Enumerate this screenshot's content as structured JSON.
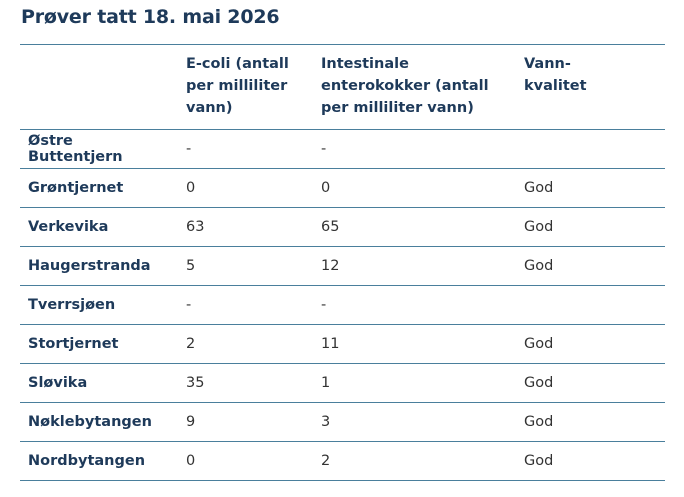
{
  "header": {
    "title": "Prøver tatt 18. mai 2026"
  },
  "table": {
    "columns": [
      null,
      "E-coli (antall per milliliter vann)",
      "Intestinale enterokokker (antall per milliliter vann)",
      "Vann-kvalitet"
    ],
    "rows": [
      [
        "Østre Buttentjern",
        "-",
        "-",
        null
      ],
      [
        "Grøntjernet",
        "0",
        "0",
        "God"
      ],
      [
        "Verkevika",
        "63",
        "65",
        "God"
      ],
      [
        "Haugerstranda",
        "5",
        "12",
        "God"
      ],
      [
        "Tverrsjøen",
        "-",
        "-",
        null
      ],
      [
        "Stortjernet",
        "2",
        "11",
        "God"
      ],
      [
        "Sløvika",
        "35",
        "1",
        "God"
      ],
      [
        "Nøklebytangen",
        "9",
        "3",
        "God"
      ],
      [
        "Nordbytangen",
        "0",
        "2",
        "God"
      ]
    ]
  }
}
